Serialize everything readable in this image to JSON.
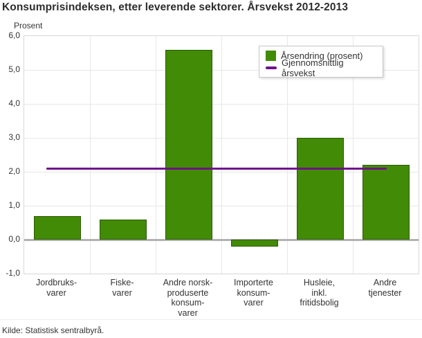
{
  "colors": {
    "bar": "#428b06",
    "avg_line": "#6f1289",
    "grid": "#e7e7e7",
    "zero_line": "#b2b2b2",
    "plot_border": "#d8d8d8",
    "text": "#333333"
  },
  "chart_data": {
    "type": "bar",
    "title": "Konsumprisindeksen, etter leverende sektorer. Årsvekst 2012-2013",
    "ylabel": "Prosent",
    "xlabel": "",
    "ylim": [
      -1,
      6
    ],
    "ytick_step": 1,
    "ytick_labels": [
      "6,0",
      "5,0",
      "4,0",
      "3,0",
      "2,0",
      "1,0",
      "0,0",
      "-1,0"
    ],
    "grid": true,
    "legend_position": "top-right",
    "categories": [
      "Jordbruks-\nvarer",
      "Fiske-\nvarer",
      "Andre norsk-\nproduserte\nkonsum-\nvarer",
      "Importerte\nkonsum-\nvarer",
      "Husleie,\ninkl.\nfritidsbolig",
      "Andre\ntjenester"
    ],
    "series": [
      {
        "name": "Årsendring (prosent)",
        "type": "bar",
        "values": [
          0.7,
          0.6,
          5.6,
          -0.2,
          3.0,
          2.2
        ]
      },
      {
        "name": "Gjennomsnittlig årsvekst",
        "type": "line",
        "value": 2.1
      }
    ]
  },
  "footer": {
    "source": "Kilde: Statistisk sentralbyrå."
  }
}
